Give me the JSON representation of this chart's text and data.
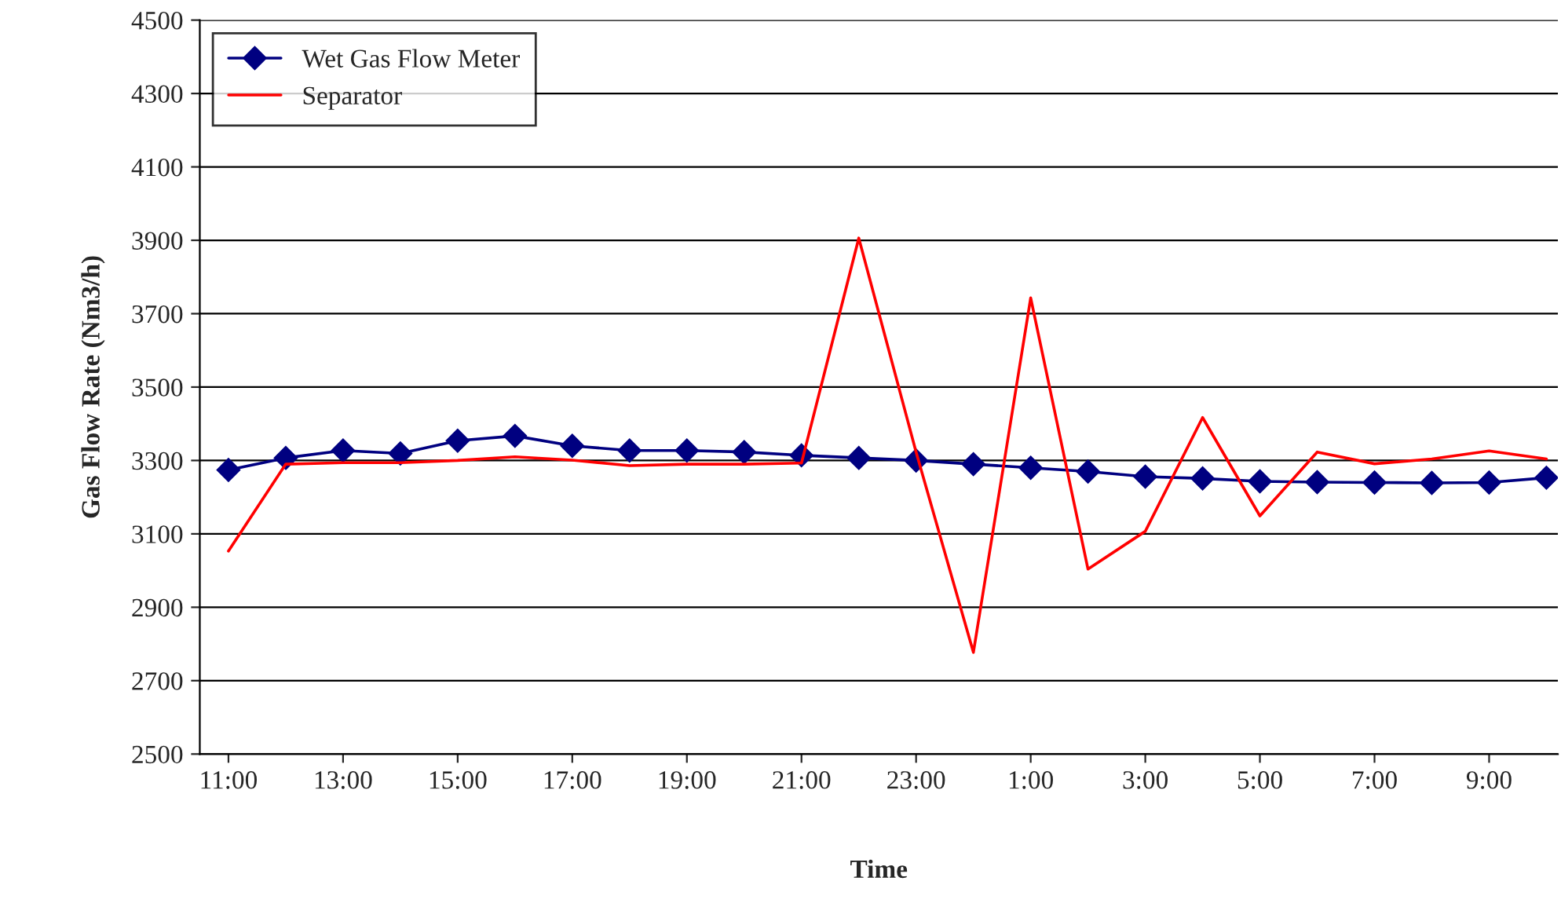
{
  "chart_data": {
    "type": "line",
    "xlabel": "Time",
    "ylabel": "Gas Flow Rate (Nm3/h)",
    "categories": [
      "11:00",
      null,
      "13:00",
      null,
      "15:00",
      null,
      "17:00",
      null,
      "19:00",
      null,
      "21:00",
      null,
      "23:00",
      null,
      "1:00",
      null,
      "3:00",
      null,
      "5:00",
      null,
      "7:00",
      null,
      "9:00",
      null
    ],
    "series": [
      {
        "name": "Wet Gas Flow Meter",
        "color": "#000080",
        "marker": "diamond",
        "values": [
          3274,
          3307,
          3327,
          3319,
          3354,
          3367,
          3340,
          3327,
          3327,
          3323,
          3314,
          3307,
          3300,
          3290,
          3280,
          3270,
          3256,
          3251,
          3243,
          3241,
          3240,
          3239,
          3240,
          3253
        ]
      },
      {
        "name": "Separator",
        "color": "#ff0000",
        "marker": "none",
        "values": [
          3053,
          3290,
          3294,
          3294,
          3300,
          3310,
          3301,
          3286,
          3290,
          3290,
          3293,
          3906,
          3323,
          2777,
          3743,
          3004,
          3107,
          3417,
          3149,
          3323,
          3291,
          3304,
          3326,
          3304
        ]
      }
    ],
    "ylim": [
      2500,
      4500
    ],
    "yticks": [
      2500,
      2700,
      2900,
      3100,
      3300,
      3500,
      3700,
      3900,
      4100,
      4300,
      4500
    ],
    "grid": "y",
    "legend": "top left"
  }
}
